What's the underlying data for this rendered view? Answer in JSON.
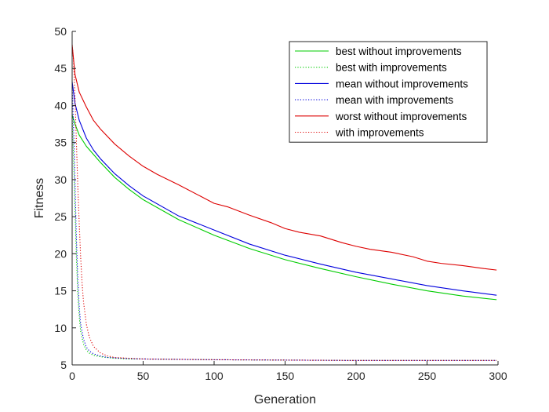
{
  "chart_data": {
    "type": "line",
    "title": "",
    "xlabel": "Generation",
    "ylabel": "Fitness",
    "xlim": [
      0,
      300
    ],
    "ylim": [
      5,
      50
    ],
    "xticks": [
      0,
      50,
      100,
      150,
      200,
      250,
      300
    ],
    "yticks": [
      5,
      10,
      15,
      20,
      25,
      30,
      35,
      40,
      45,
      50
    ],
    "grid": false,
    "legend_position": "top-right",
    "series": [
      {
        "name": "best without improvements",
        "color": "#00cc00",
        "style": "solid",
        "x": [
          0,
          2,
          5,
          10,
          15,
          20,
          30,
          40,
          50,
          75,
          100,
          125,
          150,
          175,
          200,
          225,
          250,
          275,
          299
        ],
        "y": [
          38.7,
          37.5,
          36.0,
          34.5,
          33.4,
          32.3,
          30.3,
          28.7,
          27.3,
          24.6,
          22.5,
          20.7,
          19.2,
          18.0,
          16.9,
          15.9,
          15.0,
          14.3,
          13.8
        ]
      },
      {
        "name": "best with improvements",
        "color": "#00cc00",
        "style": "dotted",
        "x": [
          0,
          1,
          2,
          3,
          4,
          5,
          6,
          8,
          10,
          12,
          15,
          20,
          25,
          30,
          40,
          50,
          100,
          150,
          200,
          250,
          299
        ],
        "y": [
          38.7,
          33.0,
          26.0,
          19.5,
          14.5,
          11.5,
          9.5,
          7.8,
          7.0,
          6.6,
          6.3,
          6.1,
          6.0,
          5.9,
          5.8,
          5.8,
          5.7,
          5.65,
          5.6,
          5.6,
          5.6
        ]
      },
      {
        "name": "mean without improvements",
        "color": "#0000dd",
        "style": "solid",
        "x": [
          0,
          2,
          5,
          10,
          15,
          20,
          30,
          40,
          50,
          75,
          100,
          125,
          150,
          175,
          200,
          225,
          250,
          275,
          299
        ],
        "y": [
          43.2,
          40.3,
          38.0,
          35.6,
          34.0,
          32.8,
          30.8,
          29.2,
          27.8,
          25.1,
          23.2,
          21.3,
          19.8,
          18.6,
          17.5,
          16.6,
          15.7,
          15.0,
          14.4
        ]
      },
      {
        "name": "mean with improvements",
        "color": "#0000dd",
        "style": "dotted",
        "x": [
          0,
          1,
          2,
          3,
          4,
          5,
          6,
          8,
          10,
          12,
          15,
          20,
          25,
          30,
          40,
          50,
          100,
          150,
          200,
          250,
          299
        ],
        "y": [
          43.2,
          37.0,
          29.5,
          22.0,
          16.5,
          12.8,
          10.5,
          8.5,
          7.4,
          6.9,
          6.5,
          6.2,
          6.0,
          5.95,
          5.85,
          5.8,
          5.7,
          5.65,
          5.6,
          5.6,
          5.6
        ]
      },
      {
        "name": "worst without improvements",
        "color": "#dd0000",
        "style": "solid",
        "x": [
          0,
          2,
          5,
          10,
          15,
          20,
          30,
          40,
          50,
          60,
          75,
          90,
          100,
          110,
          125,
          140,
          150,
          160,
          175,
          190,
          200,
          210,
          225,
          240,
          250,
          260,
          275,
          290,
          299
        ],
        "y": [
          48.2,
          44.2,
          41.8,
          39.8,
          38.0,
          36.8,
          34.8,
          33.2,
          31.8,
          30.7,
          29.3,
          27.8,
          26.8,
          26.3,
          25.2,
          24.2,
          23.4,
          22.9,
          22.4,
          21.5,
          21.0,
          20.6,
          20.2,
          19.6,
          19.0,
          18.7,
          18.4,
          18.0,
          17.8
        ]
      },
      {
        "name": "with improvements",
        "color": "#dd0000",
        "style": "dotted",
        "x": [
          0,
          1,
          2,
          3,
          4,
          5,
          6,
          7,
          8,
          10,
          12,
          15,
          20,
          25,
          30,
          40,
          50,
          100,
          150,
          200,
          250,
          299
        ],
        "y": [
          48.2,
          46.0,
          41.0,
          35.0,
          29.0,
          24.0,
          19.5,
          16.0,
          13.5,
          10.5,
          8.8,
          7.5,
          6.6,
          6.2,
          6.0,
          5.9,
          5.8,
          5.7,
          5.65,
          5.6,
          5.6,
          5.6
        ]
      }
    ]
  }
}
